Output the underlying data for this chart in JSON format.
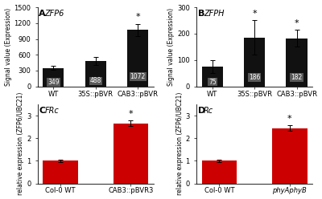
{
  "panel_A": {
    "title": "ZFP6",
    "ylabel": "Signal value (Expression)",
    "categories": [
      "WT",
      "35S::pBVR",
      "CAB3::pBVR"
    ],
    "values": [
      349,
      488,
      1072
    ],
    "errors": [
      38,
      75,
      115
    ],
    "star": [
      false,
      false,
      true
    ],
    "ylim": [
      0,
      1500
    ],
    "yticks": [
      0,
      300,
      600,
      900,
      1200,
      1500
    ],
    "bar_color": "#111111",
    "panel_label": "A"
  },
  "panel_B": {
    "title": "ZFPH",
    "ylabel": "Signal value (Expression)",
    "categories": [
      "WT",
      "35S::pBVR",
      "CAB3::pBVR"
    ],
    "values": [
      75,
      186,
      182
    ],
    "errors": [
      25,
      65,
      32
    ],
    "star": [
      false,
      true,
      true
    ],
    "ylim": [
      0,
      300
    ],
    "yticks": [
      0,
      100,
      200,
      300
    ],
    "bar_color": "#111111",
    "panel_label": "B"
  },
  "panel_C": {
    "title": "FRc",
    "ylabel": "relative expression (ZFP6/UBC21)",
    "categories": [
      "Col-0 WT",
      "CAB3::pBVR3"
    ],
    "values": [
      1.0,
      2.65
    ],
    "errors": [
      0.06,
      0.12
    ],
    "star": [
      false,
      true
    ],
    "ylim": [
      0,
      3.5
    ],
    "yticks": [
      0,
      1,
      2,
      3
    ],
    "bar_color": "#cc0000",
    "panel_label": "C"
  },
  "panel_D": {
    "title": "Rc",
    "ylabel": "relative expression (ZFP6/UBC21)",
    "categories": [
      "Col-0 WT",
      "phyAphyB"
    ],
    "italic_xtick": [
      false,
      true
    ],
    "values": [
      1.0,
      2.45
    ],
    "errors": [
      0.05,
      0.12
    ],
    "star": [
      false,
      true
    ],
    "ylim": [
      0,
      3.5
    ],
    "yticks": [
      0,
      1,
      2,
      3
    ],
    "bar_color": "#cc0000",
    "panel_label": "D"
  },
  "background_color": "#ffffff",
  "value_fontsize": 5.5,
  "tick_fontsize": 6,
  "ylabel_fontsize": 5.5,
  "title_fontsize": 7,
  "panel_label_fontsize": 8,
  "star_fontsize": 8
}
